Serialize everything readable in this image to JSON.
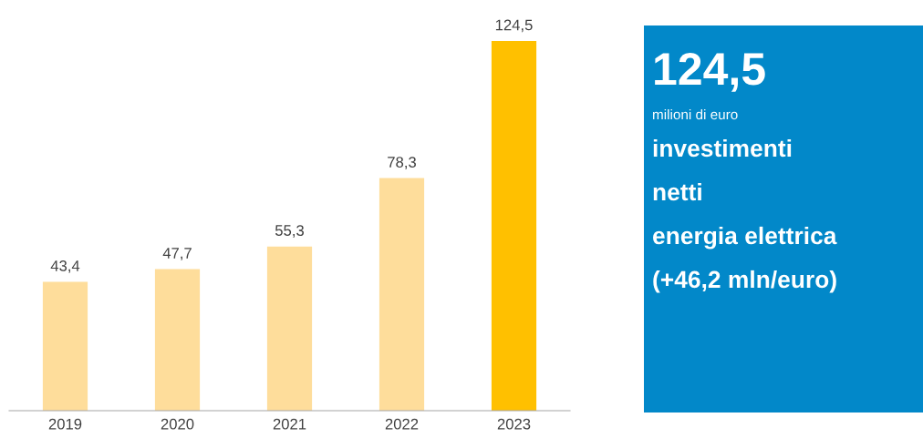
{
  "chart_data": [
    {
      "type": "bar",
      "categories": [
        "2019",
        "2020",
        "2021",
        "2022",
        "2023"
      ],
      "values": [
        43.4,
        47.7,
        55.3,
        78.3,
        124.5
      ],
      "colors": [
        "#fedd9b",
        "#fedd9b",
        "#fedd9b",
        "#fedd9b",
        "#ffc000"
      ],
      "value_labels": [
        "43,4",
        "47,7",
        "55,3",
        "78,3",
        "124,5"
      ],
      "grid": false,
      "legend": false
    },
    {
      "type": "other",
      "color": "#0288c9",
      "title": "124,5",
      "subtitle": "milioni di euro",
      "annotations": [
        "investimenti",
        "netti",
        "energia elettrica",
        "(+46,2 mln/euro)"
      ]
    }
  ]
}
